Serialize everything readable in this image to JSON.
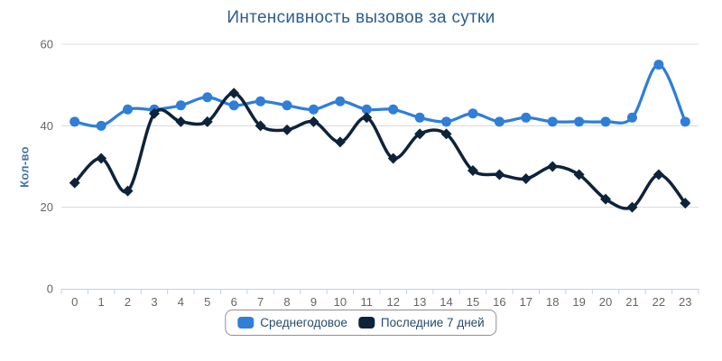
{
  "chart_data": {
    "type": "line",
    "line_shape": "spline",
    "title": "Интенсивность вызовов за сутки",
    "ylabel": "Кол-во",
    "xlabel": "",
    "categories": [
      "0",
      "1",
      "2",
      "3",
      "4",
      "5",
      "6",
      "7",
      "8",
      "9",
      "10",
      "11",
      "12",
      "13",
      "14",
      "15",
      "16",
      "17",
      "18",
      "19",
      "20",
      "21",
      "22",
      "23"
    ],
    "yticks": [
      0,
      20,
      40,
      60
    ],
    "ylim": [
      0,
      60
    ],
    "grid": true,
    "legend_position": "bottom-center",
    "series": [
      {
        "name": "Среднегодовое",
        "color": "#2f7ed8",
        "marker": "circle",
        "values": [
          41,
          40,
          44,
          44,
          45,
          47,
          45,
          46,
          45,
          44,
          46,
          44,
          44,
          42,
          41,
          43,
          41,
          42,
          41,
          41,
          41,
          42,
          55,
          41
        ]
      },
      {
        "name": "Последние 7 дней",
        "color": "#0d233a",
        "marker": "diamond",
        "values": [
          26,
          32,
          24,
          43,
          41,
          41,
          48,
          40,
          39,
          41,
          36,
          42,
          32,
          38,
          38,
          29,
          28,
          27,
          30,
          28,
          22,
          20,
          28,
          21
        ]
      }
    ]
  },
  "colors": {
    "title": "#2d5e8d",
    "axis_title": "#4572a7",
    "tick_label": "#666666",
    "gridline": "#d8d8d8",
    "axis_line": "#c0d0e0",
    "legend_border": "#909090",
    "legend_text": "#274b6d",
    "background": "#ffffff"
  }
}
